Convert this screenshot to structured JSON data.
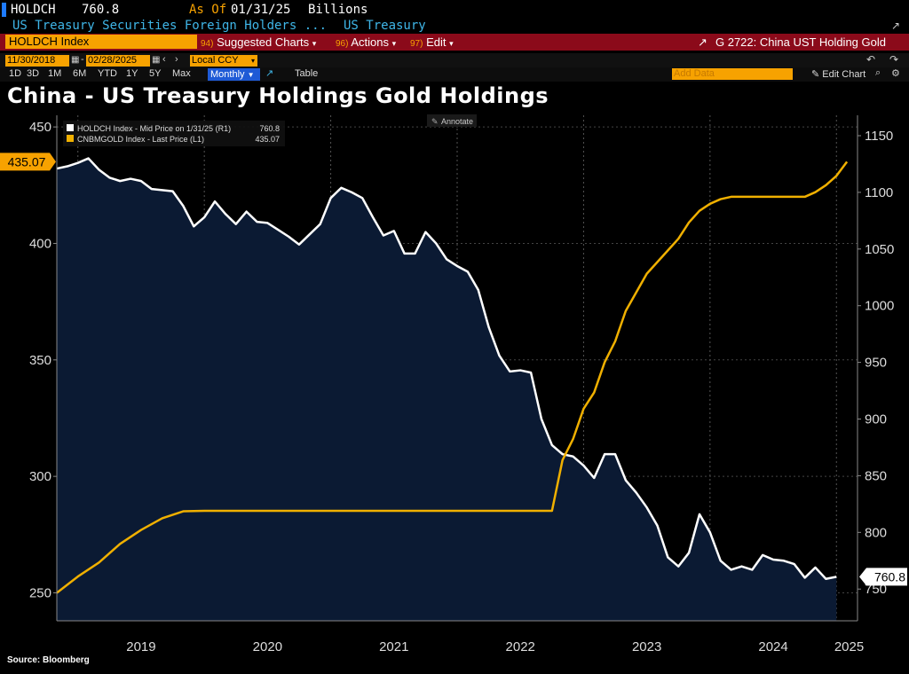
{
  "header": {
    "ticker": "HOLDCH",
    "value": "760.8",
    "asof_label": "As Of",
    "asof_date": "01/31/25",
    "units": "Billions",
    "description": "US Treasury Securities Foreign Holders ...",
    "category": "US Treasury"
  },
  "toolbar": {
    "security_field": "HOLDCH Index",
    "suggested_charts": "Suggested Charts",
    "suggested_num": "94)",
    "actions": "Actions",
    "actions_num": "96)",
    "edit": "Edit",
    "edit_num": "97)",
    "chart_name": "G 2722: China UST Holding Gold"
  },
  "dates": {
    "start": "11/30/2018",
    "end": "02/28/2025",
    "currency": "Local CCY"
  },
  "periods": {
    "items": [
      "1D",
      "3D",
      "1M",
      "6M",
      "YTD",
      "1Y",
      "5Y",
      "Max"
    ],
    "frequency": "Monthly",
    "table_label": "Table",
    "add_data": "Add Data",
    "edit_chart": "Edit Chart"
  },
  "title": "China - US Treasury Holdings Gold Holdings",
  "annotate_label": "Annotate",
  "source": "Source: Bloomberg",
  "colors": {
    "gold": "#f0b000",
    "holdings": "#ffffff",
    "area": "#0b1a33",
    "label_bg": "#f7a200"
  },
  "chart_data": {
    "type": "line",
    "x_ticks": [
      "2019",
      "2020",
      "2021",
      "2022",
      "2023",
      "2024",
      "2025"
    ],
    "legend": [
      {
        "text": "HOLDCH Index - Mid Price on 1/31/25 (R1)",
        "value": "760.8"
      },
      {
        "text": "CNBMGOLD Index - Last Price (L1)",
        "value": "435.07"
      }
    ],
    "left_axis": {
      "ticks": [
        450,
        400,
        350,
        300,
        250
      ],
      "ylim": [
        238,
        455
      ]
    },
    "right_axis": {
      "ticks": [
        1150,
        1100,
        1050,
        1000,
        950,
        900,
        850,
        800,
        750
      ],
      "ylim": [
        722,
        1168
      ]
    },
    "last_labels": {
      "left": "435.07",
      "right": "760.8"
    },
    "series": [
      {
        "name": "CNBMGOLD Index - Last Price (L1)",
        "axis": "left",
        "values": [
          [
            "2018-11",
            250.0
          ],
          [
            "2019-01",
            257.0
          ],
          [
            "2019-03",
            263.0
          ],
          [
            "2019-05",
            271.0
          ],
          [
            "2019-07",
            277.0
          ],
          [
            "2019-09",
            282.0
          ],
          [
            "2019-11",
            285.0
          ],
          [
            "2020-01",
            285.2
          ],
          [
            "2020-06",
            285.2
          ],
          [
            "2021-01",
            285.2
          ],
          [
            "2021-06",
            285.2
          ],
          [
            "2022-01",
            285.2
          ],
          [
            "2022-06",
            285.2
          ],
          [
            "2022-10",
            285.2
          ],
          [
            "2022-11",
            307.0
          ],
          [
            "2022-12",
            316.0
          ],
          [
            "2023-01",
            329.0
          ],
          [
            "2023-02",
            336.0
          ],
          [
            "2023-03",
            349.0
          ],
          [
            "2023-04",
            358.0
          ],
          [
            "2023-05",
            371.0
          ],
          [
            "2023-06",
            379.0
          ],
          [
            "2023-07",
            387.0
          ],
          [
            "2023-08",
            392.0
          ],
          [
            "2023-09",
            397.0
          ],
          [
            "2023-10",
            402.0
          ],
          [
            "2023-11",
            409.0
          ],
          [
            "2023-12",
            414.0
          ],
          [
            "2024-01",
            417.0
          ],
          [
            "2024-02",
            419.0
          ],
          [
            "2024-03",
            420.0
          ],
          [
            "2024-04",
            420.0
          ],
          [
            "2024-06",
            420.0
          ],
          [
            "2024-09",
            420.0
          ],
          [
            "2024-10",
            420.0
          ],
          [
            "2024-11",
            422.0
          ],
          [
            "2024-12",
            425.0
          ],
          [
            "2025-01",
            429.0
          ],
          [
            "2025-02",
            435.07
          ]
        ]
      },
      {
        "name": "HOLDCH Index - Mid Price on 1/31/25 (R1)",
        "axis": "right",
        "values": [
          [
            "2018-11",
            1121
          ],
          [
            "2018-12",
            1123
          ],
          [
            "2019-01",
            1126
          ],
          [
            "2019-02",
            1130
          ],
          [
            "2019-03",
            1120
          ],
          [
            "2019-04",
            1113
          ],
          [
            "2019-05",
            1110
          ],
          [
            "2019-06",
            1112
          ],
          [
            "2019-07",
            1110
          ],
          [
            "2019-08",
            1103
          ],
          [
            "2019-09",
            1102
          ],
          [
            "2019-10",
            1101
          ],
          [
            "2019-11",
            1088
          ],
          [
            "2019-12",
            1070
          ],
          [
            "2020-01",
            1078
          ],
          [
            "2020-02",
            1092
          ],
          [
            "2020-03",
            1081
          ],
          [
            "2020-04",
            1072
          ],
          [
            "2020-05",
            1083
          ],
          [
            "2020-06",
            1074
          ],
          [
            "2020-07",
            1073
          ],
          [
            "2020-08",
            1067
          ],
          [
            "2020-09",
            1061
          ],
          [
            "2020-10",
            1054
          ],
          [
            "2020-11",
            1063
          ],
          [
            "2020-12",
            1072
          ],
          [
            "2021-01",
            1095
          ],
          [
            "2021-02",
            1104
          ],
          [
            "2021-03",
            1100
          ],
          [
            "2021-04",
            1095
          ],
          [
            "2021-05",
            1078
          ],
          [
            "2021-06",
            1062
          ],
          [
            "2021-07",
            1066
          ],
          [
            "2021-08",
            1046
          ],
          [
            "2021-09",
            1046
          ],
          [
            "2021-10",
            1065
          ],
          [
            "2021-11",
            1055
          ],
          [
            "2021-12",
            1041
          ],
          [
            "2022-01",
            1035
          ],
          [
            "2022-02",
            1030
          ],
          [
            "2022-03",
            1014
          ],
          [
            "2022-04",
            981
          ],
          [
            "2022-05",
            956
          ],
          [
            "2022-06",
            942
          ],
          [
            "2022-07",
            943
          ],
          [
            "2022-08",
            941
          ],
          [
            "2022-09",
            900
          ],
          [
            "2022-10",
            877
          ],
          [
            "2022-11",
            869
          ],
          [
            "2022-12",
            867
          ],
          [
            "2023-01",
            859
          ],
          [
            "2023-02",
            848
          ],
          [
            "2023-03",
            869
          ],
          [
            "2023-04",
            869
          ],
          [
            "2023-05",
            846
          ],
          [
            "2023-06",
            835
          ],
          [
            "2023-07",
            822
          ],
          [
            "2023-08",
            806
          ],
          [
            "2023-09",
            778
          ],
          [
            "2023-10",
            770
          ],
          [
            "2023-11",
            782
          ],
          [
            "2023-12",
            816
          ],
          [
            "2024-01",
            800
          ],
          [
            "2024-02",
            775
          ],
          [
            "2024-03",
            767
          ],
          [
            "2024-04",
            770
          ],
          [
            "2024-05",
            767
          ],
          [
            "2024-06",
            780
          ],
          [
            "2024-07",
            776
          ],
          [
            "2024-08",
            775
          ],
          [
            "2024-09",
            772
          ],
          [
            "2024-10",
            760
          ],
          [
            "2024-11",
            769
          ],
          [
            "2024-12",
            759
          ],
          [
            "2025-01",
            760.8
          ]
        ]
      }
    ]
  }
}
